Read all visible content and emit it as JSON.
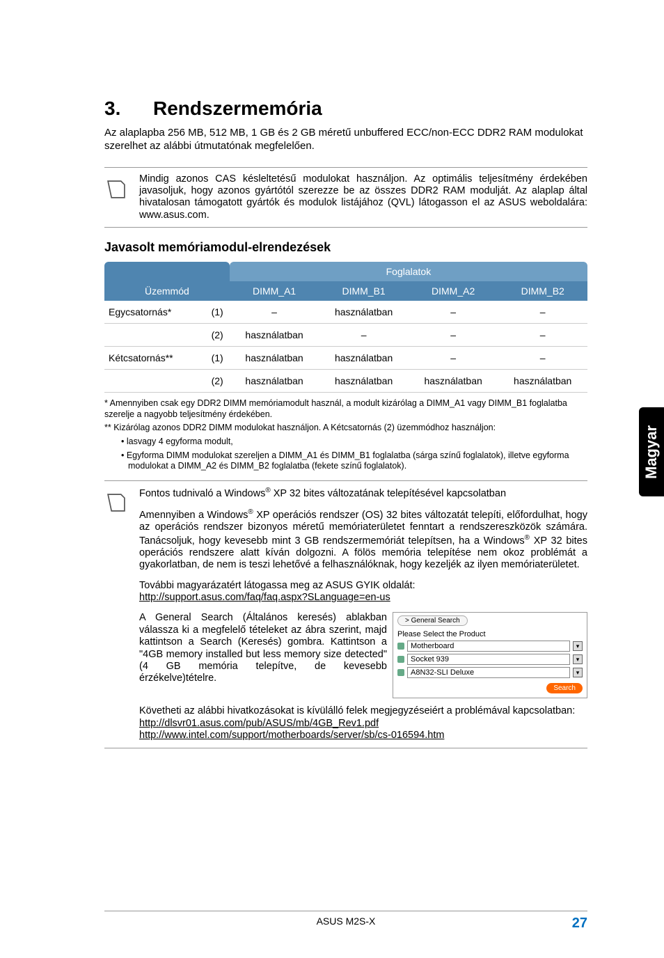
{
  "heading": {
    "number": "3.",
    "title": "Rendszermemória"
  },
  "intro": "Az alaplapba 256 MB, 512 MB, 1 GB és 2 GB méretű unbuffered ECC/non-ECC DDR2 RAM modulokat szerelhet az alábbi útmutatónak megfelelően.",
  "note1": "Mindig azonos CAS késleltetésű modulokat használjon. Az optimális teljesítmény érdekében javasoljuk, hogy azonos gyártótól szerezze be az összes DDR2 RAM modulját. Az alaplap által hivatalosan támogatott gyártók és modulok listájához (QVL) látogasson el az ASUS weboldalára: www.asus.com.",
  "section_heading": "Javasolt memóriamodul-elrendezések",
  "table": {
    "header_top": "Foglalatok",
    "header_mode": "Üzemmód",
    "header_cols": [
      "DIMM_A1",
      "DIMM_B1",
      "DIMM_A2",
      "DIMM_B2"
    ],
    "header_bg_top": "#6f9fc4",
    "header_bg_bottom": "#4f85b0",
    "rows": [
      {
        "mode": "Egycsatornás*",
        "cfg": "(1)",
        "cells": [
          "–",
          "használatban",
          "–",
          "–"
        ]
      },
      {
        "mode": "",
        "cfg": "(2)",
        "cells": [
          "használatban",
          "–",
          "–",
          "–"
        ]
      },
      {
        "mode": "Kétcsatornás**",
        "cfg": "(1)",
        "cells": [
          "használatban",
          "használatban",
          "–",
          "–"
        ]
      },
      {
        "mode": "",
        "cfg": "(2)",
        "cells": [
          "használatban",
          "használatban",
          "használatban",
          "használatban"
        ]
      }
    ]
  },
  "footnotes": {
    "f1": "*  Amennyiben csak egy DDR2 DIMM memóriamodult használ, a modult kizárólag a DIMM_A1 vagy DIMM_B1 foglalatba szerelje a nagyobb teljesítmény érdekében.",
    "f2": "** Kizárólag azonos DDR2 DIMM modulokat használjon. A Kétcsatornás (2) üzemmódhoz használjon:",
    "b1": "• lasvagy 4 egyforma modult,",
    "b2": "• Egyforma DIMM modulokat szereljen a DIMM_A1 és DIMM_B1 foglalatba (sárga színű foglalatok), illetve egyforma modulokat a DIMM_A2 és DIMM_B2 foglalatba (fekete színű foglalatok)."
  },
  "note2": {
    "line1_prefix": "Fontos tudnivaló a Windows",
    "line1_suffix": " XP 32 bites változatának telepítésével kapcsolatban",
    "para2_a": "Amennyiben a Windows",
    "para2_b": " XP operációs rendszer (OS) 32 bites változatát telepíti, előfordulhat, hogy az operációs rendszer bizonyos méretű memóriaterületet fenntart a rendszereszközök számára. Tanácsoljuk, hogy kevesebb mint 3 GB rendszermemóriát telepítsen, ha a Windows",
    "para2_c": " XP 32 bites operációs rendszere alatt kíván dolgozni. A fölös memória telepítése nem okoz problémát a gyakorlatban, de nem is teszi lehetővé a felhasználóknak, hogy kezeljék az ilyen memóriaterületet.",
    "para3": "További magyarázatért látogassa meg az ASUS GYIK oldalát:",
    "link3": "http://support.asus.com/faq/faq.aspx?SLanguage=en-us",
    "para4": "A General Search (Általános keresés) ablakban válassza ki a megfelelő tételeket az ábra szerint, majd kattintson a Search (Keresés) gombra. Kattintson a \"4GB memory installed but less memory size detected\" (4 GB memória telepítve, de kevesebb érzékelve)tételre.",
    "para5": "Követheti az alábbi hivatkozásokat is kívülálló felek megjegyzéseiért a problémával kapcsolatban:",
    "link5a": "http://dlsvr01.asus.com/pub/ASUS/mb/4GB_Rev1.pdf",
    "link5b": "http://www.intel.com/support/motherboards/server/sb/cs-016594.htm"
  },
  "search_widget": {
    "tab": "General Search",
    "prompt": "Please Select the Product",
    "fields": [
      "Motherboard",
      "Socket 939",
      "A8N32-SLI Deluxe"
    ],
    "button": "Search",
    "button_bg": "#ff6600"
  },
  "side_tab": "Magyar",
  "footer": {
    "product": "ASUS M2S-X",
    "page": "27",
    "page_color": "#0070c0"
  }
}
